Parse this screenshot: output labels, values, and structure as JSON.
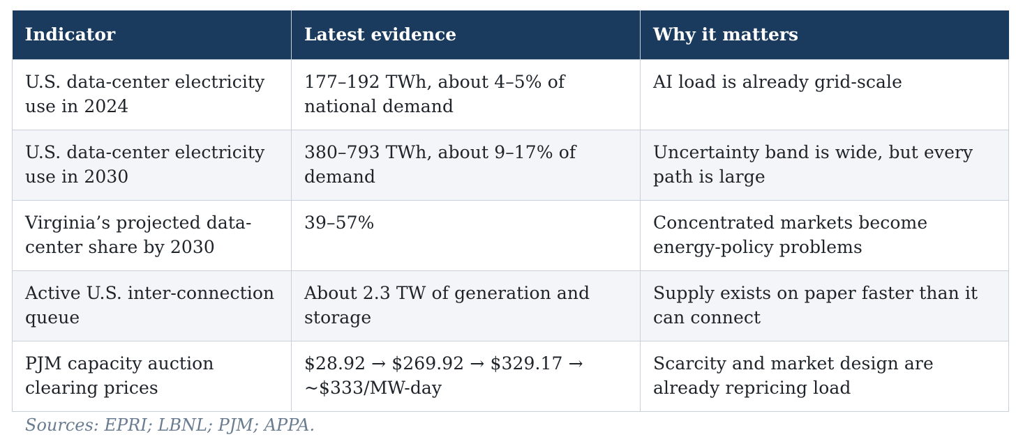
{
  "table": {
    "headers": [
      "Indicator",
      "Latest evidence",
      "Why it matters"
    ],
    "rows": [
      {
        "indicator": "U.S. data-center electricity use in 2024",
        "evidence": "177–192 TWh, about 4–5% of national demand",
        "why": "AI load is already grid-scale"
      },
      {
        "indicator": "U.S. data-center electricity use in 2030",
        "evidence": "380–793 TWh, about 9–17% of demand",
        "why": "Uncertainty band is wide, but every path is large"
      },
      {
        "indicator": "Virginia’s projected data-center share by 2030",
        "evidence": "39–57%",
        "why": "Concentrated markets become energy-policy problems"
      },
      {
        "indicator": "Active U.S. inter-connection queue",
        "evidence": "About 2.3 TW of generation and storage",
        "why": "Supply exists on paper faster than it can connect"
      },
      {
        "indicator": "PJM capacity auction clearing prices",
        "evidence": "$28.92 → $269.92 → $329.17 → ~$333/MW-day",
        "why": "Scarcity and market design are already repricing load"
      }
    ]
  },
  "sources": "Sources: EPRI; LBNL; PJM; APPA.",
  "colors": {
    "header_bg": "#1a3a5e",
    "alt_row_bg": "#f3f5f8",
    "sources_text": "#6a7c8f"
  }
}
